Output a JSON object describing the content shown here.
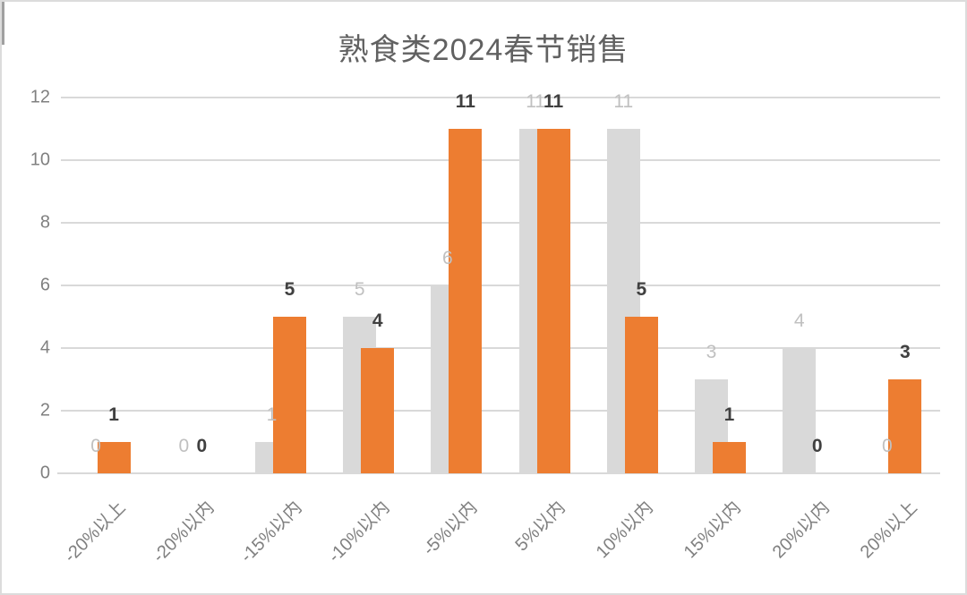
{
  "chart_data": {
    "type": "bar",
    "title": "熟食类2024春节销售",
    "categories": [
      "-20%以上",
      "-20%以内",
      "-15%以内",
      "-10%以内",
      "-5%以内",
      "5%以内",
      "10%以内",
      "15%以内",
      "20%以内",
      "20%以上"
    ],
    "series": [
      {
        "name": "gray-series",
        "color": "#d9d9d9",
        "label_color": "#c0c0c0",
        "label_weight": "400",
        "values": [
          0,
          0,
          1,
          5,
          6,
          11,
          11,
          3,
          4,
          0
        ]
      },
      {
        "name": "orange-series",
        "color": "#ed7d31",
        "label_color": "#404040",
        "label_weight": "700",
        "values": [
          1,
          0,
          5,
          4,
          11,
          11,
          5,
          1,
          0,
          3
        ]
      }
    ],
    "yticks": [
      0,
      2,
      4,
      6,
      8,
      10,
      12
    ],
    "ylim": [
      0,
      12
    ],
    "grid": "horizontal",
    "legend_position": "none",
    "data_labels": true,
    "bar_style": "overlapped-cluster"
  },
  "colors": {
    "background": "#ffffff",
    "border": "#dcdcdc",
    "gridline": "#d9d9d9",
    "axis_line": "#d9d9d9",
    "tick_text": "#808080",
    "title_text": "#616161"
  }
}
